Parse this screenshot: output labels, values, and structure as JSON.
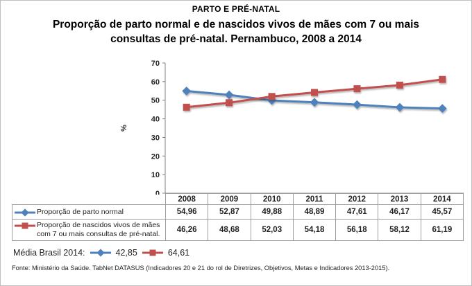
{
  "header": {
    "suptitle": "PARTO E PRÉ-NATAL",
    "title_lines": [
      "Proporção de parto normal e de nascidos vivos de mães com 7 ou mais",
      "consultas de pré-natal. Pernambuco, 2008 a 2014"
    ]
  },
  "colors": {
    "series_blue": "#4F81BD",
    "series_red": "#C0504D",
    "axis": "#808080",
    "table_border": "#9c9c9c",
    "text": "#1f1f1f"
  },
  "chart_data": {
    "type": "line",
    "title": "Proporção de parto normal e de nascidos vivos de mães com 7 ou mais consultas de pré-natal. Pernambuco, 2008 a 2014",
    "categories": [
      "2008",
      "2009",
      "2010",
      "2011",
      "2012",
      "2013",
      "2014"
    ],
    "series": [
      {
        "name": "Proporção de parto normal",
        "marker": "diamond",
        "color": "#4F81BD",
        "values": [
          54.96,
          52.87,
          49.88,
          48.89,
          47.61,
          46.17,
          45.57
        ]
      },
      {
        "name": "Proporção de nascidos vivos de mães com 7 ou mais consultas de pré-natal.",
        "marker": "square",
        "color": "#C0504D",
        "values": [
          46.26,
          48.68,
          52.03,
          54.18,
          56.18,
          58.12,
          61.19
        ]
      }
    ],
    "xlabel": "",
    "ylabel": "%",
    "ylim": [
      0,
      70
    ],
    "ytick_step": 10,
    "grid": false,
    "legend_position": "data-table-left",
    "decimal_separator": ","
  },
  "media": {
    "label": "Média Brasil 2014:",
    "values": [
      42.85,
      64.61
    ]
  },
  "footer": {
    "source": "Fonte: Ministério da Saúde. TabNet DATASUS (Indicadores 20 e 21 do rol de Diretrizes, Objetivos, Metas e Indicadores 2013-2015)."
  }
}
